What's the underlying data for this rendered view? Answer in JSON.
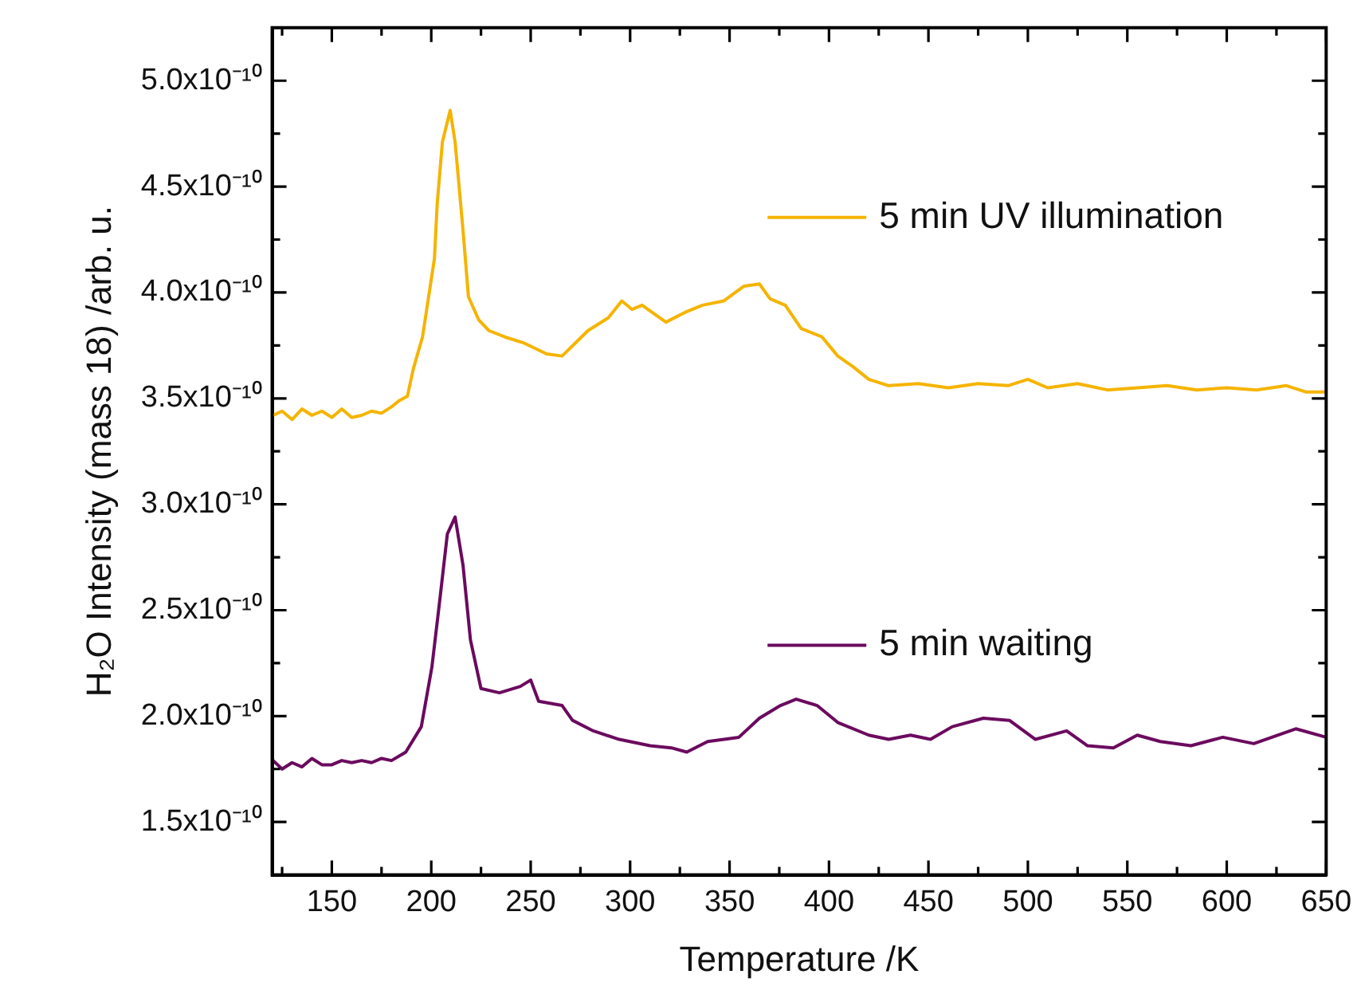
{
  "chart_data": {
    "type": "line",
    "xlabel": "Temperature /K",
    "ylabel": "H₂O Intensity (mass 18) /arb. u.",
    "xlim": [
      120,
      650
    ],
    "ylim": [
      1.25e-10,
      5.25e-10
    ],
    "xticks": [
      {
        "value": 125,
        "label": null
      },
      150,
      {
        "value": 175,
        "label": null
      },
      200,
      {
        "value": 225,
        "label": null
      },
      250,
      {
        "value": 275,
        "label": null
      },
      300,
      {
        "value": 325,
        "label": null
      },
      350,
      {
        "value": 375,
        "label": null
      },
      400,
      {
        "value": 425,
        "label": null
      },
      450,
      {
        "value": 475,
        "label": null
      },
      500,
      {
        "value": 525,
        "label": null
      },
      550,
      {
        "value": 575,
        "label": null
      },
      600,
      {
        "value": 625,
        "label": null
      },
      650
    ],
    "yticks": [
      {
        "value": 1.5e-10,
        "label": "1.5x10⁻¹⁰"
      },
      {
        "value": 1.75e-10,
        "label": null
      },
      {
        "value": 2e-10,
        "label": "2.0x10⁻¹⁰"
      },
      {
        "value": 2.25e-10,
        "label": null
      },
      {
        "value": 2.5e-10,
        "label": "2.5x10⁻¹⁰"
      },
      {
        "value": 2.75e-10,
        "label": null
      },
      {
        "value": 3e-10,
        "label": "3.0x10⁻¹⁰"
      },
      {
        "value": 3.25e-10,
        "label": null
      },
      {
        "value": 3.5e-10,
        "label": "3.5x10⁻¹⁰"
      },
      {
        "value": 3.75e-10,
        "label": null
      },
      {
        "value": 4e-10,
        "label": "4.0x10⁻¹⁰"
      },
      {
        "value": 4.25e-10,
        "label": null
      },
      {
        "value": 4.5e-10,
        "label": "4.5x10⁻¹⁰"
      },
      {
        "value": 4.75e-10,
        "label": null
      },
      {
        "value": 5e-10,
        "label": "5.0x10⁻¹⁰"
      }
    ],
    "grid": false,
    "legend": "right",
    "marker": "none",
    "line_style": "solid",
    "series": [
      {
        "name": "5 min UV illumination",
        "color": "#f5b400",
        "x": [
          120.5,
          125,
          130,
          135,
          140,
          145,
          150,
          155,
          160,
          165,
          170,
          175,
          180,
          184,
          188,
          191,
          195.6,
          201.6,
          203,
          205.6,
          209.5,
          212,
          216,
          218.7,
          223.9,
          229,
          237,
          247,
          258,
          265.8,
          278.8,
          289,
          295.8,
          301,
          306,
          318,
          328.5,
          336.4,
          347,
          357.3,
          365,
          370.4,
          378,
          386,
          396.5,
          404.4,
          412,
          420,
          430,
          445,
          460,
          475,
          490,
          500,
          510,
          525,
          540,
          555,
          570,
          585,
          600,
          615,
          630,
          640,
          650
        ],
        "values": [
          3.42e-10,
          3.44e-10,
          3.4e-10,
          3.45e-10,
          3.42e-10,
          3.44e-10,
          3.41e-10,
          3.45e-10,
          3.41e-10,
          3.42e-10,
          3.44e-10,
          3.43e-10,
          3.46e-10,
          3.49e-10,
          3.51e-10,
          3.64e-10,
          3.79e-10,
          4.16e-10,
          4.42e-10,
          4.71e-10,
          4.86e-10,
          4.71e-10,
          4.29e-10,
          3.98e-10,
          3.87e-10,
          3.82e-10,
          3.79e-10,
          3.76e-10,
          3.71e-10,
          3.7e-10,
          3.82e-10,
          3.88e-10,
          3.96e-10,
          3.92e-10,
          3.94e-10,
          3.86e-10,
          3.91e-10,
          3.94e-10,
          3.96e-10,
          4.03e-10,
          4.04e-10,
          3.97e-10,
          3.94e-10,
          3.83e-10,
          3.79e-10,
          3.7e-10,
          3.65e-10,
          3.59e-10,
          3.56e-10,
          3.57e-10,
          3.55e-10,
          3.57e-10,
          3.56e-10,
          3.59e-10,
          3.55e-10,
          3.57e-10,
          3.54e-10,
          3.55e-10,
          3.56e-10,
          3.54e-10,
          3.55e-10,
          3.54e-10,
          3.56e-10,
          3.53e-10,
          3.53e-10
        ]
      },
      {
        "name": "5 min waiting",
        "color": "#6b0a5e",
        "x": [
          120.5,
          125,
          130,
          135,
          140,
          145,
          150,
          155,
          160,
          165,
          170,
          175,
          180,
          187.2,
          195,
          200.3,
          204.2,
          208.1,
          212,
          216,
          219.7,
          225,
          234.3,
          244.8,
          250,
          254,
          265.8,
          271,
          281.5,
          294.5,
          310,
          320.7,
          328.5,
          339,
          354.7,
          365,
          375.6,
          383.5,
          394,
          404.4,
          420,
          430,
          441,
          451,
          462,
          477.6,
          490.7,
          503.8,
          519.5,
          530,
          543,
          555,
          566.6,
          582,
          598,
          613.6,
          634.7,
          650
        ],
        "values": [
          1.79e-10,
          1.75e-10,
          1.78e-10,
          1.76e-10,
          1.8e-10,
          1.77e-10,
          1.77e-10,
          1.79e-10,
          1.78e-10,
          1.79e-10,
          1.78e-10,
          1.8e-10,
          1.79e-10,
          1.83e-10,
          1.95e-10,
          2.23e-10,
          2.54e-10,
          2.86e-10,
          2.94e-10,
          2.71e-10,
          2.36e-10,
          2.13e-10,
          2.11e-10,
          2.14e-10,
          2.17e-10,
          2.07e-10,
          2.05e-10,
          1.98e-10,
          1.93e-10,
          1.89e-10,
          1.86e-10,
          1.85e-10,
          1.83e-10,
          1.88e-10,
          1.9e-10,
          1.99e-10,
          2.05e-10,
          2.08e-10,
          2.05e-10,
          1.97e-10,
          1.91e-10,
          1.89e-10,
          1.91e-10,
          1.89e-10,
          1.95e-10,
          1.99e-10,
          1.98e-10,
          1.89e-10,
          1.93e-10,
          1.86e-10,
          1.85e-10,
          1.91e-10,
          1.88e-10,
          1.86e-10,
          1.9e-10,
          1.87e-10,
          1.94e-10,
          1.9e-10
        ]
      }
    ]
  }
}
